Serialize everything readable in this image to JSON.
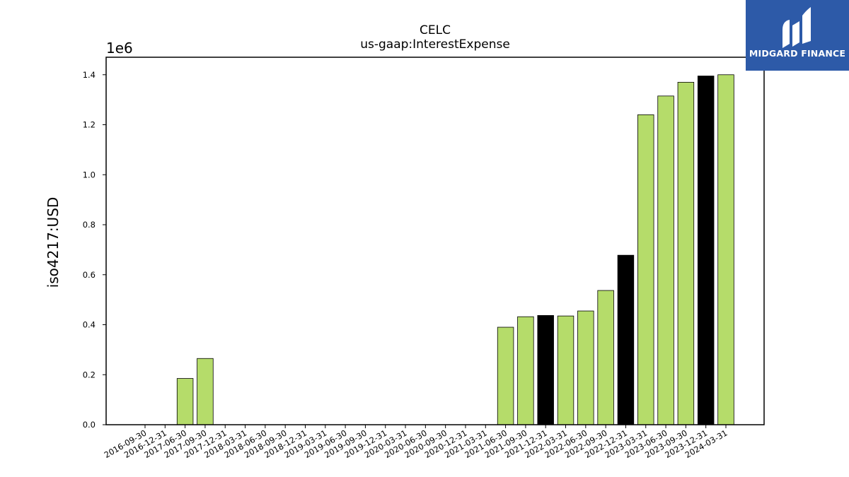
{
  "chart_data": {
    "type": "bar",
    "title": "CELC",
    "subtitle": "us-gaap:InterestExpense",
    "ylabel": "iso4217:USD",
    "xlabel": "",
    "y_scale_label": "1e6",
    "y_multiplier": 1000000,
    "ylim": [
      0,
      1470000
    ],
    "yticks": [
      0,
      200000,
      400000,
      600000,
      800000,
      1000000,
      1200000,
      1400000
    ],
    "ytick_labels": [
      "0.0",
      "0.2",
      "0.4",
      "0.6",
      "0.8",
      "1.0",
      "1.2",
      "1.4"
    ],
    "categories": [
      "2016-09-30",
      "2016-12-31",
      "2017-06-30",
      "2017-09-30",
      "2017-12-31",
      "2018-03-31",
      "2018-06-30",
      "2018-09-30",
      "2018-12-31",
      "2019-03-31",
      "2019-06-30",
      "2019-09-30",
      "2019-12-31",
      "2020-03-31",
      "2020-06-30",
      "2020-09-30",
      "2020-12-31",
      "2021-03-31",
      "2021-06-30",
      "2021-09-30",
      "2021-12-31",
      "2022-03-31",
      "2022-06-30",
      "2022-09-30",
      "2022-12-31",
      "2023-03-31",
      "2023-06-30",
      "2023-09-30",
      "2023-12-31",
      "2024-03-31"
    ],
    "values": [
      null,
      null,
      185000,
      265000,
      null,
      null,
      null,
      null,
      null,
      null,
      null,
      null,
      null,
      null,
      null,
      null,
      null,
      null,
      390000,
      432000,
      437000,
      435000,
      455000,
      537000,
      678000,
      1240000,
      1315000,
      1370000,
      1395000,
      1400000
    ],
    "highlight": [
      false,
      false,
      false,
      false,
      false,
      false,
      false,
      false,
      false,
      false,
      false,
      false,
      false,
      false,
      false,
      false,
      false,
      false,
      false,
      false,
      true,
      false,
      false,
      false,
      true,
      false,
      false,
      false,
      true,
      false
    ],
    "colors": {
      "bar": "#b5dc6a",
      "highlight": "#000000",
      "edge": "#000000"
    },
    "grid": false,
    "legend": "none"
  },
  "logo": {
    "text": "MIDGARD FINANCE",
    "background": "#2d5aa8"
  }
}
